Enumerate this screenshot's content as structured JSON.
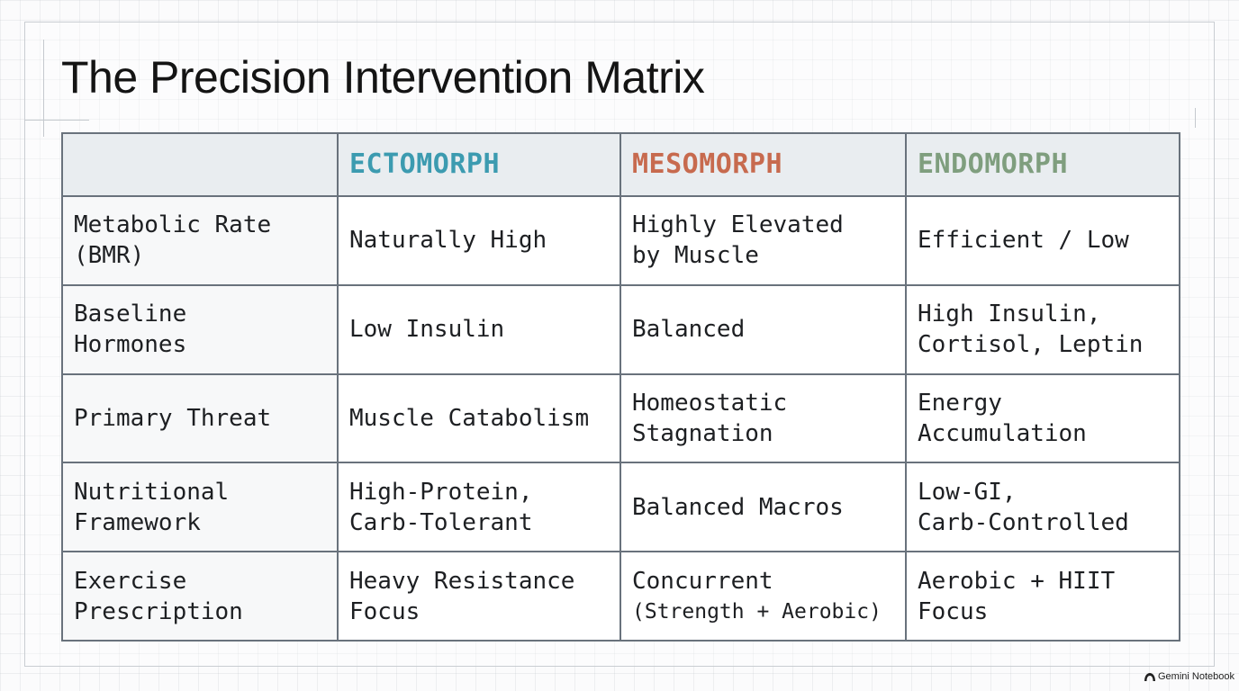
{
  "title": "The Precision Intervention Matrix",
  "columns": [
    {
      "label": "",
      "color": ""
    },
    {
      "label": "ECTOMORPH",
      "color": "#3c9bb0"
    },
    {
      "label": "MESOMORPH",
      "color": "#c76a4e"
    },
    {
      "label": "ENDOMORPH",
      "color": "#7f9e7e"
    }
  ],
  "rows": [
    {
      "header": [
        "Metabolic Rate",
        "(BMR)"
      ],
      "ectomorph": [
        "Naturally High"
      ],
      "mesomorph": [
        "Highly Elevated",
        "by Muscle"
      ],
      "endomorph": [
        "Efficient / Low"
      ]
    },
    {
      "header": [
        "Baseline",
        "Hormones"
      ],
      "ectomorph": [
        "Low Insulin"
      ],
      "mesomorph": [
        "Balanced"
      ],
      "endomorph": [
        "High Insulin,",
        "Cortisol, Leptin"
      ]
    },
    {
      "header": [
        "Primary Threat"
      ],
      "ectomorph": [
        "Muscle Catabolism"
      ],
      "mesomorph": [
        "Homeostatic",
        "Stagnation"
      ],
      "endomorph": [
        "Energy",
        "Accumulation"
      ]
    },
    {
      "header": [
        "Nutritional",
        "Framework"
      ],
      "ectomorph": [
        "High-Protein,",
        "Carb-Tolerant"
      ],
      "mesomorph": [
        "Balanced Macros"
      ],
      "endomorph": [
        "Low-GI,",
        "Carb-Controlled"
      ]
    },
    {
      "header": [
        "Exercise",
        "Prescription"
      ],
      "ectomorph": [
        "Heavy Resistance",
        "Focus"
      ],
      "mesomorph": [
        "Concurrent",
        "(Strength + Aerobic)"
      ],
      "endomorph": [
        "Aerobic + HIIT",
        "Focus"
      ]
    }
  ],
  "watermark": {
    "text": "Gemini Notebook",
    "icon": "notebook-logo-icon"
  }
}
